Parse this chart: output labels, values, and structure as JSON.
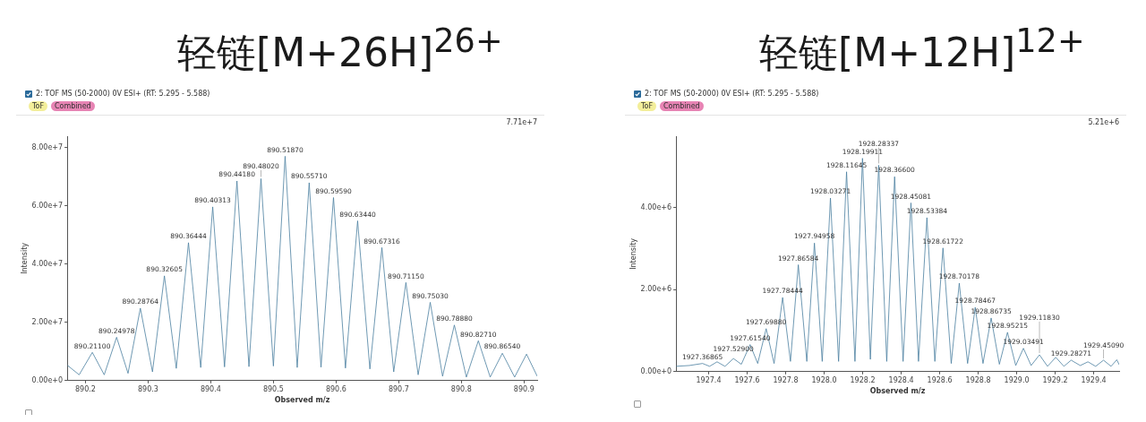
{
  "chart_data": [
    {
      "type": "line",
      "title": "轻链[M+26H]$^{26+}$",
      "subtitle": "2: TOF MS (50-2000) 0V ESI+ (RT: 5.295 - 5.588)",
      "xlabel": "Observed m/z",
      "ylabel": "Intensity",
      "xlim": [
        890.171,
        890.921
      ],
      "xticks": [
        890.2,
        890.3,
        890.4,
        890.5,
        890.6,
        890.7,
        890.8,
        890.9
      ],
      "ylim": [
        0,
        84000000
      ],
      "yticks": [
        {
          "value": 0,
          "label": "0.00e+0"
        },
        {
          "value": 20000000,
          "label": "2.00e+7"
        },
        {
          "value": 40000000,
          "label": "4.00e+7"
        },
        {
          "value": 60000000,
          "label": "6.00e+7"
        },
        {
          "value": 80000000,
          "label": "8.00e+7"
        }
      ],
      "grid": false,
      "legend": false,
      "marker": "none",
      "line_style": "solid",
      "series": [
        {
          "color": "#4a7fa0",
          "x": [
            890.171,
            890.19,
            890.211,
            890.23,
            890.24978,
            890.268,
            890.28764,
            890.307,
            890.32605,
            890.345,
            890.36444,
            890.384,
            890.40313,
            890.422,
            890.4418,
            890.461,
            890.4802,
            890.5,
            890.5187,
            890.538,
            890.5571,
            890.576,
            890.5959,
            890.615,
            890.6344,
            890.654,
            890.67316,
            890.692,
            890.7115,
            890.731,
            890.7503,
            890.77,
            890.7888,
            890.808,
            890.8271,
            890.846,
            890.8654,
            890.885,
            890.904,
            890.921
          ],
          "values": [
            5300000,
            2000000,
            9700000,
            2000000,
            14900000,
            2500000,
            24900000,
            3000000,
            36000000,
            4200000,
            47400000,
            4500000,
            59700000,
            4700000,
            68600000,
            4800000,
            69400000,
            5000000,
            77100000,
            4500000,
            68000000,
            4600000,
            62900000,
            4300000,
            54900000,
            4000000,
            45700000,
            3000000,
            33700000,
            2000000,
            26900000,
            1500000,
            19100000,
            1200000,
            13700000,
            1200000,
            9400000,
            1200000,
            9100000,
            1500000
          ]
        }
      ],
      "annotations": [
        "ToF",
        "Combined",
        "7.71e+7",
        {
          "text": "890.21100",
          "x": 890.211,
          "y": 9700000
        },
        {
          "text": "890.24978",
          "x": 890.24978,
          "y": 14900000
        },
        {
          "text": "890.28764",
          "x": 890.28764,
          "y": 24900000
        },
        {
          "text": "890.32605",
          "x": 890.32605,
          "y": 36000000
        },
        {
          "text": "890.36444",
          "x": 890.36444,
          "y": 47400000
        },
        {
          "text": "890.40313",
          "x": 890.40313,
          "y": 59700000
        },
        {
          "text": "890.44180",
          "x": 890.4418,
          "y": 68600000
        },
        {
          "text": "890.48020",
          "x": 890.4802,
          "y": 69400000
        },
        {
          "text": "890.51870",
          "x": 890.5187,
          "y": 77100000
        },
        {
          "text": "890.55710",
          "x": 890.5571,
          "y": 68000000
        },
        {
          "text": "890.59590",
          "x": 890.5959,
          "y": 62900000
        },
        {
          "text": "890.63440",
          "x": 890.6344,
          "y": 54900000
        },
        {
          "text": "890.67316",
          "x": 890.67316,
          "y": 45700000
        },
        {
          "text": "890.71150",
          "x": 890.7115,
          "y": 33700000
        },
        {
          "text": "890.75030",
          "x": 890.7503,
          "y": 26900000
        },
        {
          "text": "890.78880",
          "x": 890.7888,
          "y": 19100000
        },
        {
          "text": "890.82710",
          "x": 890.8271,
          "y": 13700000
        },
        {
          "text": "890.86540",
          "x": 890.8654,
          "y": 9400000
        }
      ]
    },
    {
      "type": "line",
      "title": "轻链[M+12H]$^{12+}$",
      "subtitle": "2: TOF MS (50-2000) 0V ESI+ (RT: 5.295 - 5.588)",
      "xlabel": "Observed m/z",
      "ylabel": "Intensity",
      "xlim": [
        1927.231,
        1929.532
      ],
      "xticks": [
        1927.4,
        1927.6,
        1927.8,
        {
          "value": 1928,
          "label": "1928.0"
        },
        1928.2,
        1928.4,
        1928.6,
        1928.8,
        {
          "value": 1929,
          "label": "1929.0"
        },
        1929.2,
        1929.4
      ],
      "ylim": [
        0,
        5750000
      ],
      "yticks": [
        {
          "value": 0,
          "label": "0.00e+0"
        },
        {
          "value": 2000000,
          "label": "2.00e+6"
        },
        {
          "value": 4000000,
          "label": "4.00e+6"
        }
      ],
      "grid": false,
      "legend": false,
      "marker": "none",
      "line_style": "solid",
      "series": [
        {
          "color": "#4a7fa0",
          "x": [
            1927.231,
            1927.3,
            1927.36865,
            1927.405,
            1927.444,
            1927.485,
            1927.529,
            1927.57,
            1927.6154,
            1927.655,
            1927.6988,
            1927.74,
            1927.78444,
            1927.825,
            1927.86584,
            1927.91,
            1927.94958,
            1927.99,
            1928.03271,
            1928.075,
            1928.11645,
            1928.16,
            1928.19911,
            1928.24,
            1928.28337,
            1928.325,
            1928.366,
            1928.41,
            1928.45081,
            1928.49,
            1928.53384,
            1928.575,
            1928.61722,
            1928.66,
            1928.70178,
            1928.745,
            1928.78467,
            1928.825,
            1928.86735,
            1928.91,
            1928.95215,
            1928.995,
            1929.03491,
            1929.075,
            1929.1183,
            1929.16,
            1929.203,
            1929.245,
            1929.28271,
            1929.33,
            1929.37,
            1929.41,
            1929.4509,
            1929.49,
            1929.52,
            1929.532
          ],
          "values": [
            130000,
            150000,
            200000,
            130000,
            240000,
            130000,
            320000,
            180000,
            660000,
            200000,
            1050000,
            200000,
            1810000,
            250000,
            2610000,
            250000,
            3140000,
            250000,
            4240000,
            250000,
            4880000,
            250000,
            5210000,
            300000,
            5040000,
            250000,
            4760000,
            250000,
            4120000,
            250000,
            3760000,
            250000,
            3020000,
            200000,
            2160000,
            200000,
            1570000,
            200000,
            1310000,
            180000,
            960000,
            150000,
            570000,
            150000,
            410000,
            130000,
            350000,
            130000,
            280000,
            150000,
            240000,
            130000,
            280000,
            130000,
            290000,
            170000
          ]
        }
      ],
      "annotations": [
        "ToF",
        "Combined",
        "5.21e+6",
        {
          "text": "1927.36865",
          "x": 1927.36865,
          "y": 200000
        },
        {
          "text": "1927.52900",
          "x": 1927.529,
          "y": 320000
        },
        {
          "text": "1927.61540",
          "x": 1927.6154,
          "y": 660000
        },
        {
          "text": "1927.69880",
          "x": 1927.6988,
          "y": 1050000
        },
        {
          "text": "1927.78444",
          "x": 1927.78444,
          "y": 1810000
        },
        {
          "text": "1927.86584",
          "x": 1927.86584,
          "y": 2610000
        },
        {
          "text": "1927.94958",
          "x": 1927.94958,
          "y": 3140000
        },
        {
          "text": "1928.03271",
          "x": 1928.03271,
          "y": 4240000
        },
        {
          "text": "1928.11645",
          "x": 1928.11645,
          "y": 4880000
        },
        {
          "text": "1928.19911",
          "x": 1928.19911,
          "y": 5210000
        },
        {
          "text": "1928.28337",
          "x": 1928.28337,
          "y": 5040000
        },
        {
          "text": "1928.36600",
          "x": 1928.366,
          "y": 4760000
        },
        {
          "text": "1928.45081",
          "x": 1928.45081,
          "y": 4120000
        },
        {
          "text": "1928.53384",
          "x": 1928.53384,
          "y": 3760000
        },
        {
          "text": "1928.61722",
          "x": 1928.61722,
          "y": 3020000
        },
        {
          "text": "1928.70178",
          "x": 1928.70178,
          "y": 2160000
        },
        {
          "text": "1928.78467",
          "x": 1928.78467,
          "y": 1570000
        },
        {
          "text": "1928.86735",
          "x": 1928.86735,
          "y": 1310000
        },
        {
          "text": "1928.95215",
          "x": 1928.95215,
          "y": 960000
        },
        {
          "text": "1929.03491",
          "x": 1929.03491,
          "y": 570000
        },
        {
          "text": "1929.11830",
          "x": 1929.1183,
          "y": 410000
        },
        {
          "text": "1929.28271",
          "x": 1929.28271,
          "y": 280000
        },
        {
          "text": "1929.45090",
          "x": 1929.4509,
          "y": 280000
        }
      ]
    }
  ]
}
